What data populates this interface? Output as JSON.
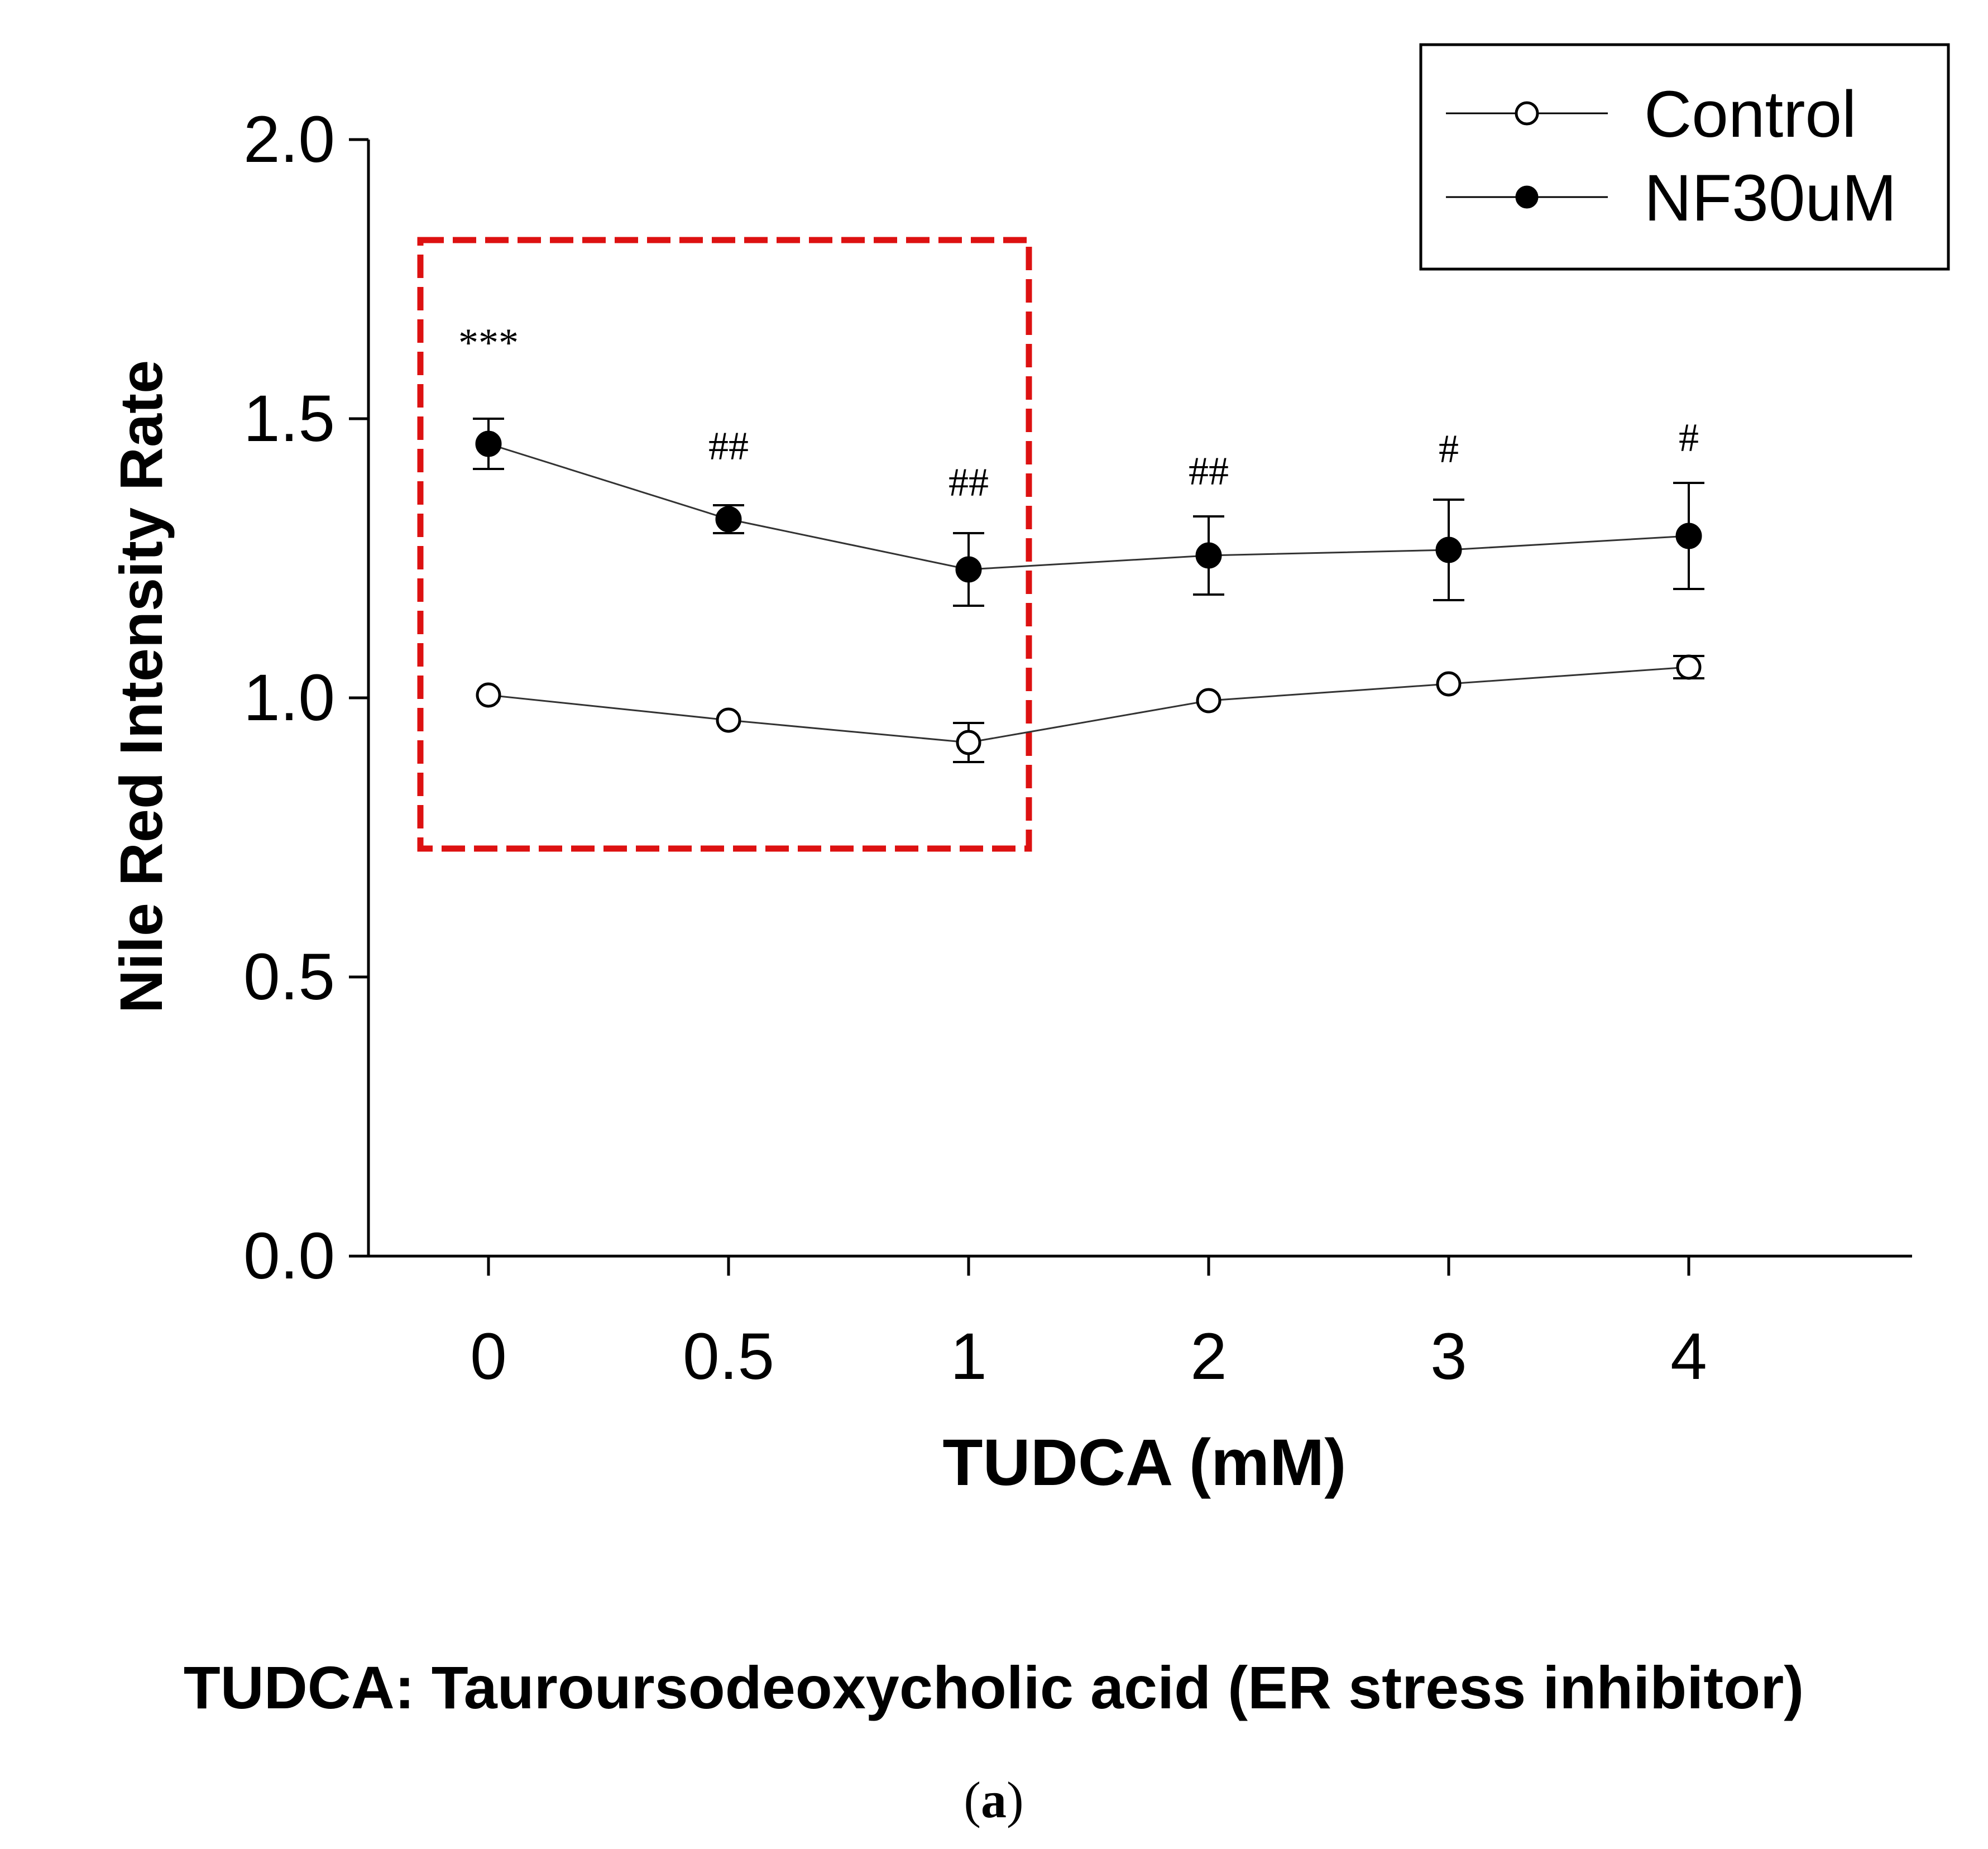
{
  "chart_data": {
    "type": "line",
    "title": "",
    "xlabel": "TUDCA (mM)",
    "ylabel": "Nile Red Intensity Rate",
    "categories": [
      "0",
      "0.5",
      "1",
      "2",
      "3",
      "4"
    ],
    "ylim": [
      0.0,
      2.0
    ],
    "yticks": [
      "0.0",
      "0.5",
      "1.0",
      "1.5",
      "2.0"
    ],
    "yticks_values": [
      0.0,
      0.5,
      1.0,
      1.5,
      2.0
    ],
    "grid": false,
    "legend_position": "top-right",
    "series": [
      {
        "name": "Control",
        "marker": "open-circle",
        "values": [
          1.005,
          0.96,
          0.92,
          0.995,
          1.025,
          1.055
        ],
        "errors": [
          0.0,
          0.0,
          0.035,
          0.0,
          0.0,
          0.02
        ]
      },
      {
        "name": "NF30uM",
        "marker": "filled-circle",
        "values": [
          1.455,
          1.32,
          1.23,
          1.255,
          1.265,
          1.29
        ],
        "errors": [
          0.045,
          0.025,
          0.065,
          0.07,
          0.09,
          0.095
        ]
      }
    ],
    "annotations": [
      {
        "category": "0",
        "text": "***",
        "value": 1.64
      },
      {
        "category": "0.5",
        "text": "##",
        "value": 1.455
      },
      {
        "category": "1",
        "text": "##",
        "value": 1.39
      },
      {
        "category": "2",
        "text": "##",
        "value": 1.41
      },
      {
        "category": "3",
        "text": "#",
        "value": 1.45
      },
      {
        "category": "4",
        "text": "#",
        "value": 1.47
      }
    ],
    "highlight_box": {
      "category_range": [
        "0",
        "1"
      ],
      "value_range": [
        0.73,
        1.82
      ],
      "color": "#dd1111",
      "style": "dashed"
    }
  },
  "caption": {
    "definition": "TUDCA: Tauroursodeoxycholic acid (ER stress inhibitor)",
    "panel_label": "(a)",
    "panel_letter": "a"
  },
  "colors": {
    "line": "#333333",
    "marker": "#000000",
    "highlight": "#dd1111"
  }
}
